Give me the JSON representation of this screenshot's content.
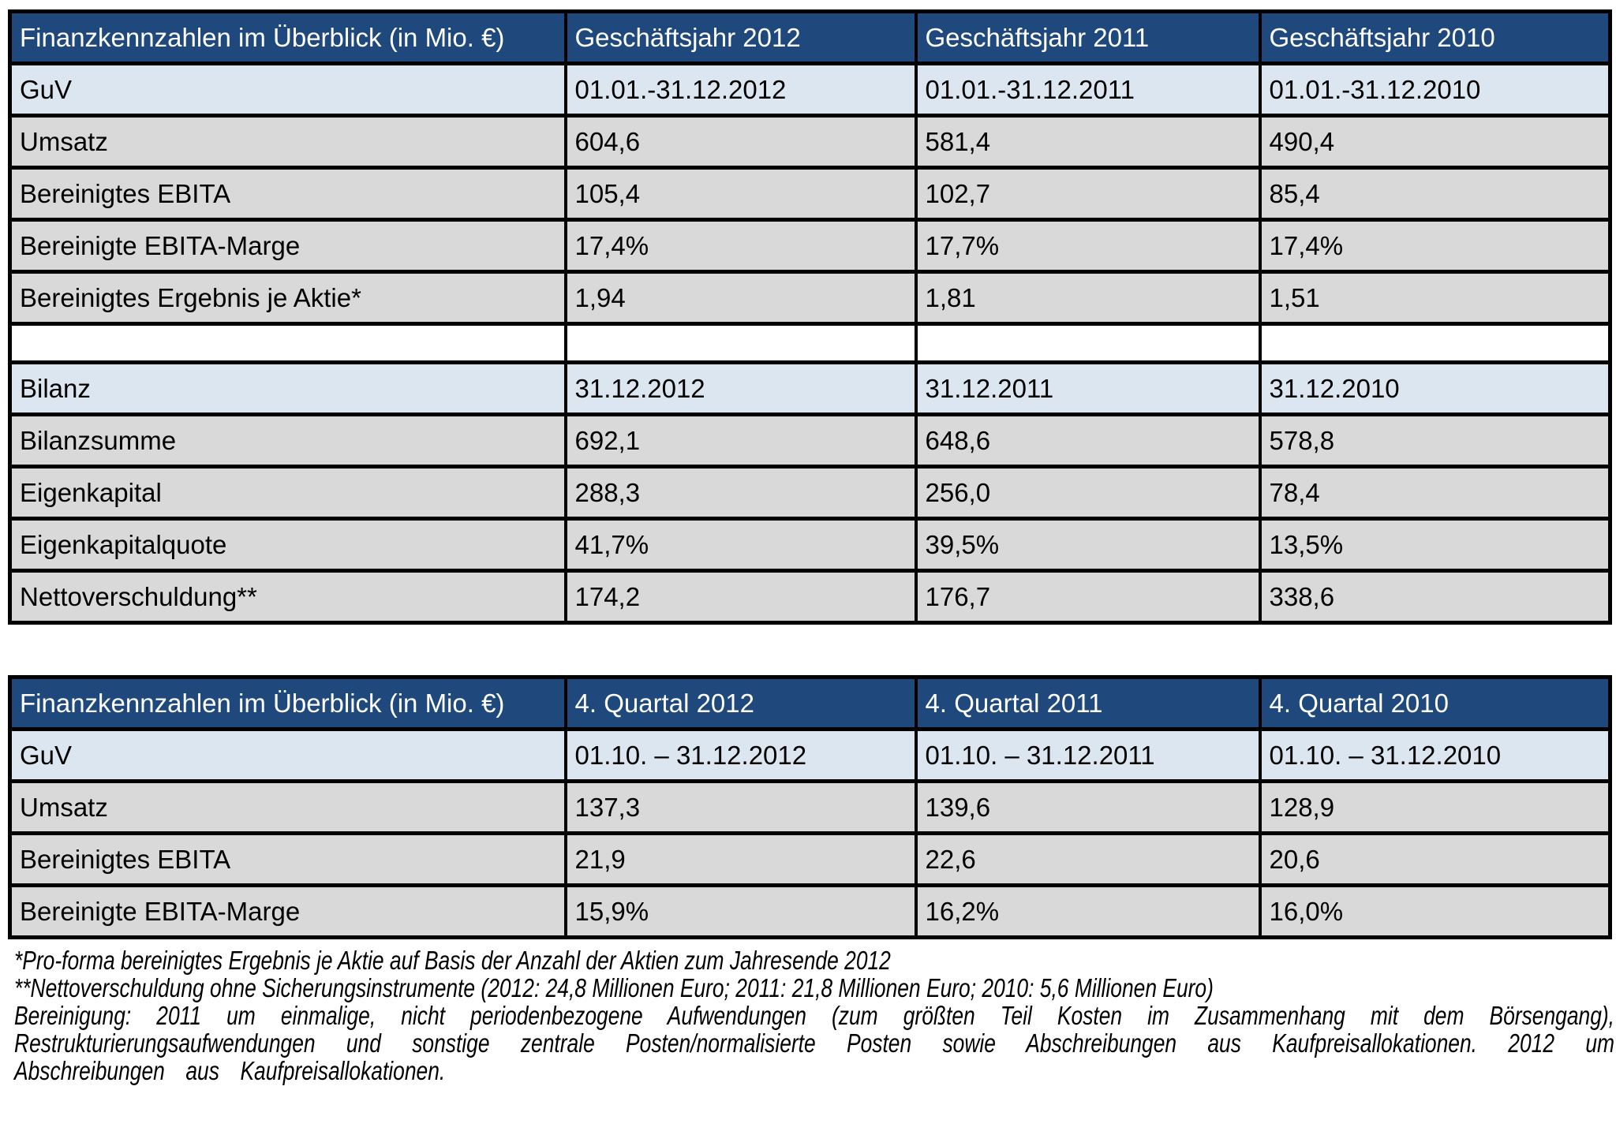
{
  "colors": {
    "header_bg": "#1F497D",
    "header_text": "#FFFFFF",
    "subheader_row_bg": "#DCE6F1",
    "data_row_bg": "#D9D9D9",
    "blank_row_bg": "#FFFFFF",
    "border": "#000000",
    "body_text": "#000000"
  },
  "annual_table": {
    "title": "Finanzkennzahlen im Überblick (in Mio. €)",
    "col_headers": [
      "Geschäftsjahr 2012",
      "Geschäftsjahr 2011",
      "Geschäftsjahr 2010"
    ],
    "rows": [
      {
        "label": "GuV",
        "values": [
          "01.01.-31.12.2012",
          "01.01.-31.12.2011",
          "01.01.-31.12.2010"
        ]
      },
      {
        "label": "Umsatz",
        "values": [
          "604,6",
          "581,4",
          "490,4"
        ]
      },
      {
        "label": "Bereinigtes EBITA",
        "values": [
          "105,4",
          "102,7",
          "85,4"
        ]
      },
      {
        "label": "Bereinigte EBITA-Marge",
        "values": [
          "17,4%",
          "17,7%",
          "17,4%"
        ]
      },
      {
        "label": "Bereinigtes Ergebnis je Aktie*",
        "values": [
          "1,94",
          "1,81",
          "1,51"
        ]
      },
      {
        "label": "",
        "values": [
          "",
          "",
          ""
        ]
      },
      {
        "label": "Bilanz",
        "values": [
          "31.12.2012",
          "31.12.2011",
          "31.12.2010"
        ]
      },
      {
        "label": "Bilanzsumme",
        "values": [
          "692,1",
          "648,6",
          "578,8"
        ]
      },
      {
        "label": "Eigenkapital",
        "values": [
          "288,3",
          "256,0",
          "78,4"
        ]
      },
      {
        "label": "Eigenkapitalquote",
        "values": [
          "41,7%",
          "39,5%",
          "13,5%"
        ]
      },
      {
        "label": "Nettoverschuldung**",
        "values": [
          "174,2",
          "176,7",
          "338,6"
        ]
      }
    ]
  },
  "quarterly_table": {
    "title": "Finanzkennzahlen im Überblick (in Mio. €)",
    "col_headers": [
      "4. Quartal 2012",
      "4. Quartal 2011",
      "4. Quartal 2010"
    ],
    "rows": [
      {
        "label": "GuV",
        "values": [
          "01.10. – 31.12.2012",
          "01.10. – 31.12.2011",
          "01.10. – 31.12.2010"
        ]
      },
      {
        "label": "Umsatz",
        "values": [
          "137,3",
          "139,6",
          "128,9"
        ]
      },
      {
        "label": "Bereinigtes EBITA",
        "values": [
          "21,9",
          "22,6",
          "20,6"
        ]
      },
      {
        "label": "Bereinigte EBITA-Marge",
        "values": [
          "15,9%",
          "16,2%",
          "16,0%"
        ]
      }
    ]
  },
  "footnotes": {
    "line1": "*Pro-forma bereinigtes Ergebnis je Aktie auf Basis der Anzahl der Aktien zum Jahresende 2012",
    "line2": "**Nettoverschuldung ohne Sicherungsinstrumente (2012: 24,8 Millionen Euro; 2011: 21,8 Millionen Euro; 2010: 5,6 Millionen Euro)",
    "paragraph": "Bereinigung: 2011 um einmalige, nicht periodenbezogene Aufwendungen (zum größten Teil Kosten im Zusammenhang mit dem Börsengang), Restrukturierungsaufwendungen und sonstige zentrale Posten/normalisierte Posten sowie Abschreibungen aus Kaufpreisallokationen. 2012 um Abschreibungen aus Kaufpreisallokationen."
  }
}
